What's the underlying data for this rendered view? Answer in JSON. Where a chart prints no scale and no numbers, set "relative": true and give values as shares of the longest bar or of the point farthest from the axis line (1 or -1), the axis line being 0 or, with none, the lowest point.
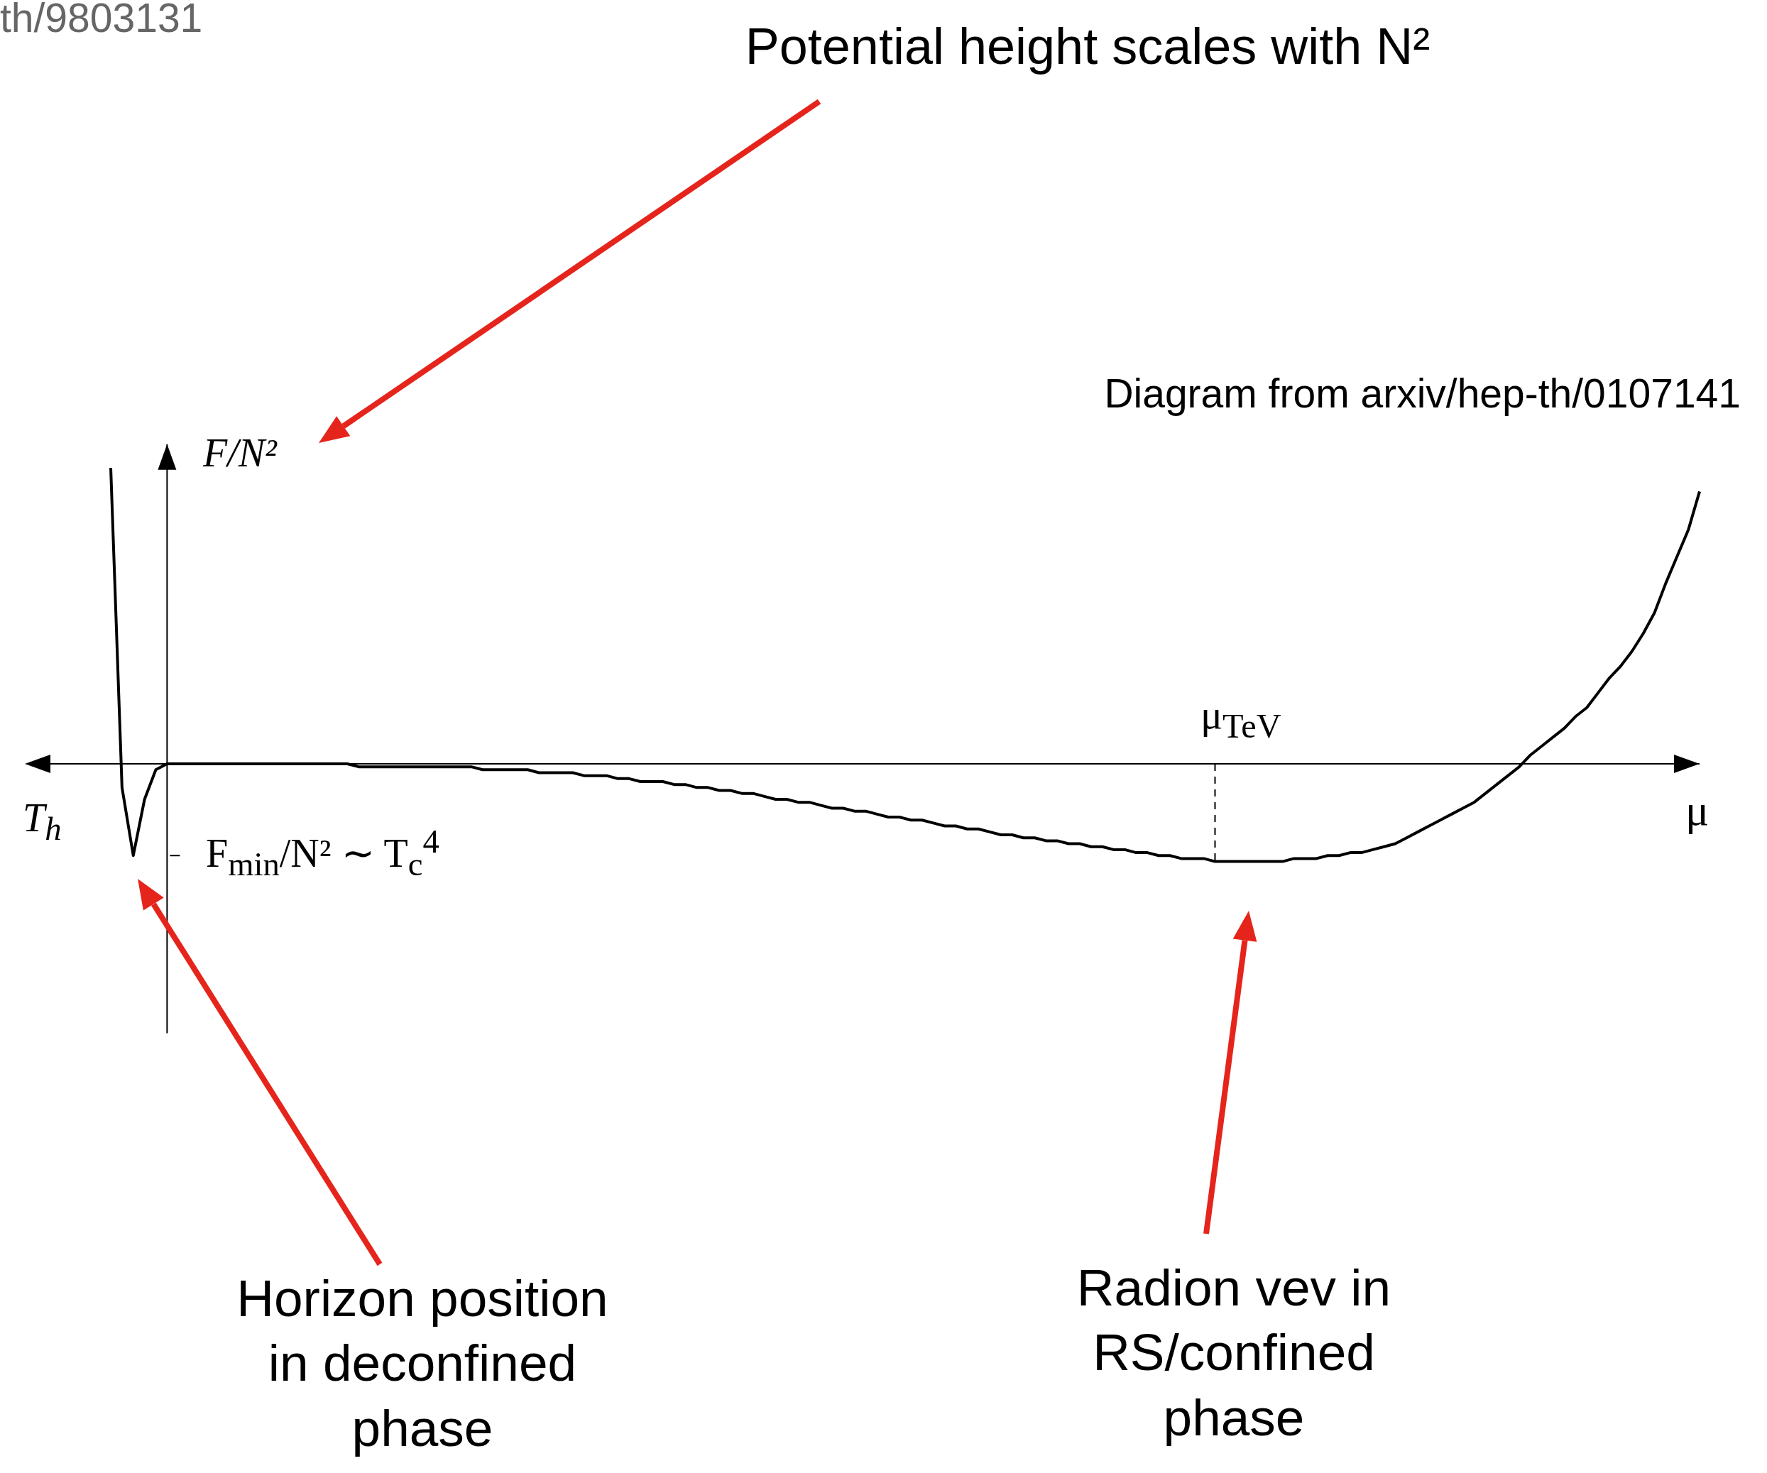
{
  "chart_data": {
    "type": "line",
    "relative": true,
    "xlabel": "μ",
    "ylabel": "F/N²",
    "color": "#000000",
    "line_style": "solid",
    "marker": "none",
    "categories": [
      null,
      null,
      null,
      null,
      null,
      null,
      null,
      null,
      null,
      null,
      null,
      null,
      null,
      null,
      null,
      null,
      null,
      null,
      null,
      null,
      null,
      null,
      null,
      null,
      null,
      null,
      null,
      null,
      null,
      null,
      null,
      null,
      null,
      null,
      null,
      null,
      null,
      null,
      null,
      null,
      null,
      null,
      null,
      null,
      null,
      null,
      null,
      null,
      null,
      null,
      null,
      null,
      null,
      null,
      null,
      null,
      null,
      null,
      null,
      null,
      null,
      null,
      null,
      null,
      null,
      null,
      null,
      null,
      null,
      null,
      null,
      null,
      null,
      null,
      null,
      null,
      null,
      null,
      null,
      null,
      null,
      null,
      null,
      null,
      null,
      null,
      null,
      null,
      null,
      null,
      null,
      null,
      null,
      null,
      null,
      null,
      null,
      null,
      null,
      null,
      null,
      null,
      null,
      null,
      null,
      null,
      null,
      null,
      null,
      null,
      null,
      null,
      null,
      null,
      null,
      null,
      null,
      null,
      null,
      null,
      null,
      null,
      null,
      null,
      null,
      null,
      null,
      null,
      null,
      null,
      null,
      null,
      null,
      null,
      null,
      null,
      null,
      null,
      null,
      null,
      null,
      null
    ],
    "values": [
      1.0,
      -0.08,
      -0.31,
      -0.12,
      -0.02,
      0,
      0,
      0,
      0,
      0,
      0,
      0,
      0,
      0,
      0,
      0,
      0,
      0,
      0,
      0,
      0,
      0,
      -0.01,
      -0.01,
      -0.01,
      -0.01,
      -0.01,
      -0.01,
      -0.01,
      -0.01,
      -0.01,
      -0.01,
      -0.01,
      -0.02,
      -0.02,
      -0.02,
      -0.02,
      -0.02,
      -0.03,
      -0.03,
      -0.03,
      -0.03,
      -0.04,
      -0.04,
      -0.04,
      -0.05,
      -0.05,
      -0.06,
      -0.06,
      -0.06,
      -0.07,
      -0.07,
      -0.08,
      -0.08,
      -0.09,
      -0.09,
      -0.1,
      -0.1,
      -0.11,
      -0.12,
      -0.12,
      -0.13,
      -0.13,
      -0.14,
      -0.15,
      -0.15,
      -0.16,
      -0.16,
      -0.17,
      -0.18,
      -0.18,
      -0.19,
      -0.19,
      -0.2,
      -0.21,
      -0.21,
      -0.22,
      -0.22,
      -0.23,
      -0.24,
      -0.24,
      -0.25,
      -0.25,
      -0.26,
      -0.26,
      -0.27,
      -0.27,
      -0.28,
      -0.28,
      -0.29,
      -0.29,
      -0.3,
      -0.3,
      -0.31,
      -0.31,
      -0.32,
      -0.32,
      -0.32,
      -0.33,
      -0.33,
      -0.33,
      -0.33,
      -0.33,
      -0.33,
      -0.33,
      -0.32,
      -0.32,
      -0.32,
      -0.31,
      -0.31,
      -0.3,
      -0.3,
      -0.29,
      -0.28,
      -0.27,
      -0.25,
      -0.23,
      -0.21,
      -0.19,
      -0.17,
      -0.15,
      -0.13,
      -0.1,
      -0.07,
      -0.04,
      -0.01,
      0.03,
      0.06,
      0.09,
      0.12,
      0.16,
      0.19,
      0.24,
      0.29,
      0.33,
      0.38,
      0.44,
      0.51,
      0.61,
      0.7,
      0.79,
      0.92
    ],
    "annotations": [
      "th/9803131",
      "Potential height scales with N²",
      "Diagram from arxiv/hep-th/0107141",
      "T$_{h}$",
      "μ$_{TeV}$",
      "F$_{min}$/N² ∼ T$_{c}$$^{4}$",
      "Horizon position in deconfined phase",
      "Radion vev in RS/confined phase"
    ]
  }
}
